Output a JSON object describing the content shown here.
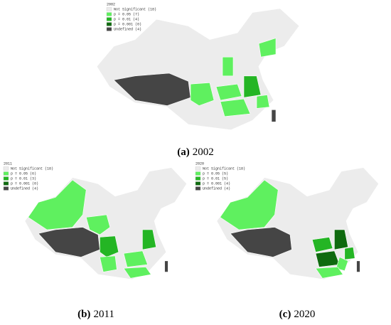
{
  "figure": {
    "panels": [
      {
        "legend_title": "2002",
        "caption": {
          "label": "(a)",
          "year": "2002"
        },
        "legend": [
          {
            "label": "Not Significant (18)",
            "color": "#ececec"
          },
          {
            "label": "p = 0.05 (7)",
            "color": "#5ff05f"
          },
          {
            "label": "p = 0.01 (4)",
            "color": "#24b524"
          },
          {
            "label": "p = 0.001 (0)",
            "color": "#0f6a0f"
          },
          {
            "label": "Undefined (4)",
            "color": "#454545"
          }
        ]
      },
      {
        "legend_title": "2011",
        "caption": {
          "label": "(b)",
          "year": "2011"
        },
        "legend": [
          {
            "label": "Not Significant (18)",
            "color": "#ececec"
          },
          {
            "label": "p = 0.05 (6)",
            "color": "#5ff05f"
          },
          {
            "label": "p = 0.01 (3)",
            "color": "#24b524"
          },
          {
            "label": "p = 0.001 (0)",
            "color": "#0f6a0f"
          },
          {
            "label": "Undefined (4)",
            "color": "#454545"
          }
        ]
      },
      {
        "legend_title": "2020",
        "caption": {
          "label": "(c)",
          "year": "2020"
        },
        "legend": [
          {
            "label": "Not Significant (18)",
            "color": "#ececec"
          },
          {
            "label": "p = 0.05 (5)",
            "color": "#5ff05f"
          },
          {
            "label": "p = 0.01 (5)",
            "color": "#24b524"
          },
          {
            "label": "p = 0.001 (4)",
            "color": "#0f6a0f"
          },
          {
            "label": "Undefined (4)",
            "color": "#454545"
          }
        ]
      }
    ]
  }
}
